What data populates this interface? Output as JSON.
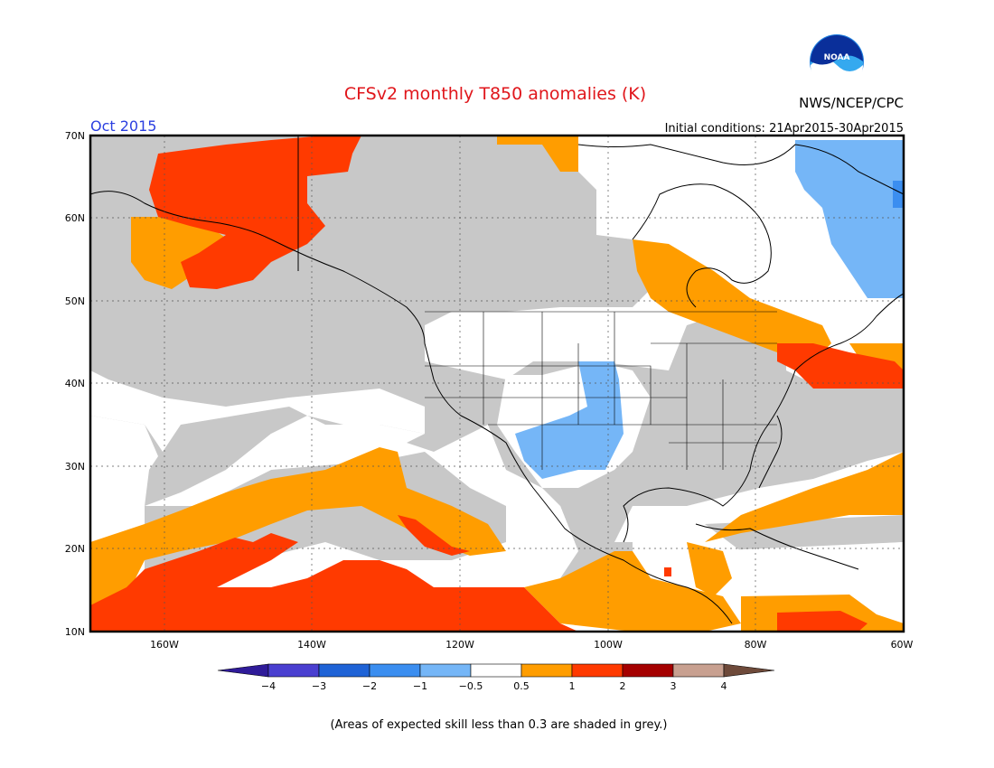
{
  "header": {
    "title": "CFSv2 monthly T850 anomalies (K)",
    "month": "Oct 2015",
    "agency": "NWS/NCEP/CPC",
    "initial_conditions": "Initial conditions: 21Apr2015-30Apr2015",
    "logo_text": "NOAA"
  },
  "map": {
    "lat_labels": [
      "70N",
      "60N",
      "50N",
      "40N",
      "30N",
      "20N",
      "10N"
    ],
    "lon_labels": [
      "160W",
      "140W",
      "120W",
      "100W",
      "80W",
      "60W"
    ],
    "land_color": "#ffffff",
    "ocean_grey": "#c8c8c8"
  },
  "colorbar": {
    "ticks": [
      "−4",
      "−3",
      "−2",
      "−1",
      "−0.5",
      "0.5",
      "1",
      "2",
      "3",
      "4"
    ],
    "colors": [
      "#2f1b99",
      "#4a3fd0",
      "#1f63d6",
      "#3b8ef0",
      "#75b6f7",
      "#ffffff",
      "#ff9d00",
      "#ff3a00",
      "#a50000",
      "#c8a090",
      "#6e4a3a"
    ]
  },
  "footnote": "(Areas of expected skill less than 0.3 are shaded in grey.)"
}
